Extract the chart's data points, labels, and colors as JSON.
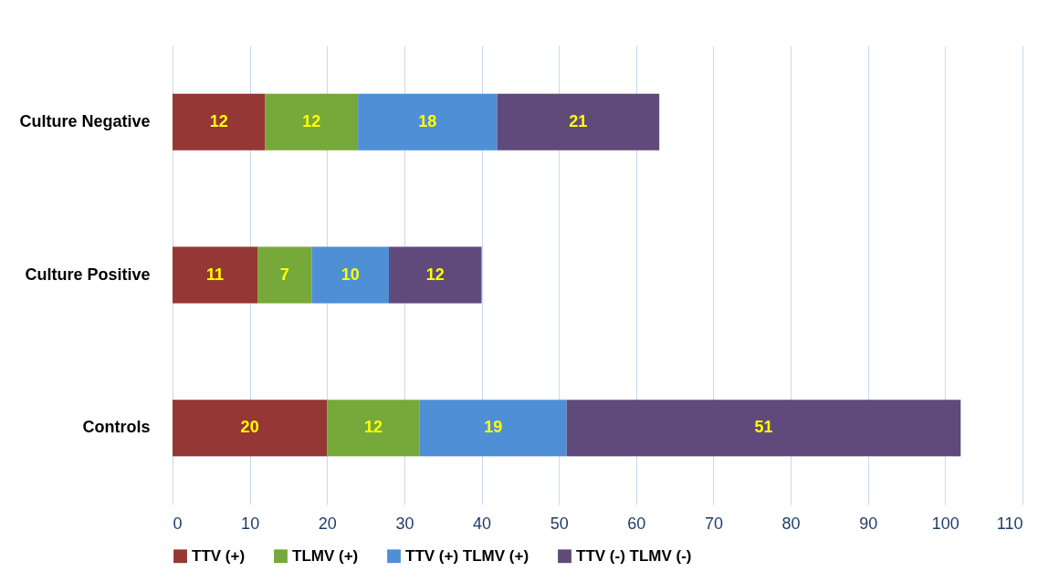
{
  "chart_data": {
    "type": "bar",
    "orientation": "horizontal",
    "stacked": true,
    "categories": [
      "Culture Negative",
      "Culture Positive",
      "Controls"
    ],
    "series": [
      {
        "name": "TTV (+)",
        "color": "#953735",
        "values": [
          12,
          11,
          20
        ]
      },
      {
        "name": "TLMV (+)",
        "color": "#77a83a",
        "values": [
          12,
          7,
          12
        ]
      },
      {
        "name": "TTV (+) TLMV (+)",
        "color": "#4f8fd6",
        "values": [
          18,
          10,
          19
        ]
      },
      {
        "name": "TTV (-) TLMV (-)",
        "color": "#604a7b",
        "values": [
          21,
          12,
          51
        ]
      }
    ],
    "xlim": [
      0,
      110
    ],
    "xticks": [
      0,
      10,
      20,
      30,
      40,
      50,
      60,
      70,
      80,
      90,
      100,
      110
    ],
    "grid": "x",
    "legend": "bottom",
    "data_labels": true
  }
}
